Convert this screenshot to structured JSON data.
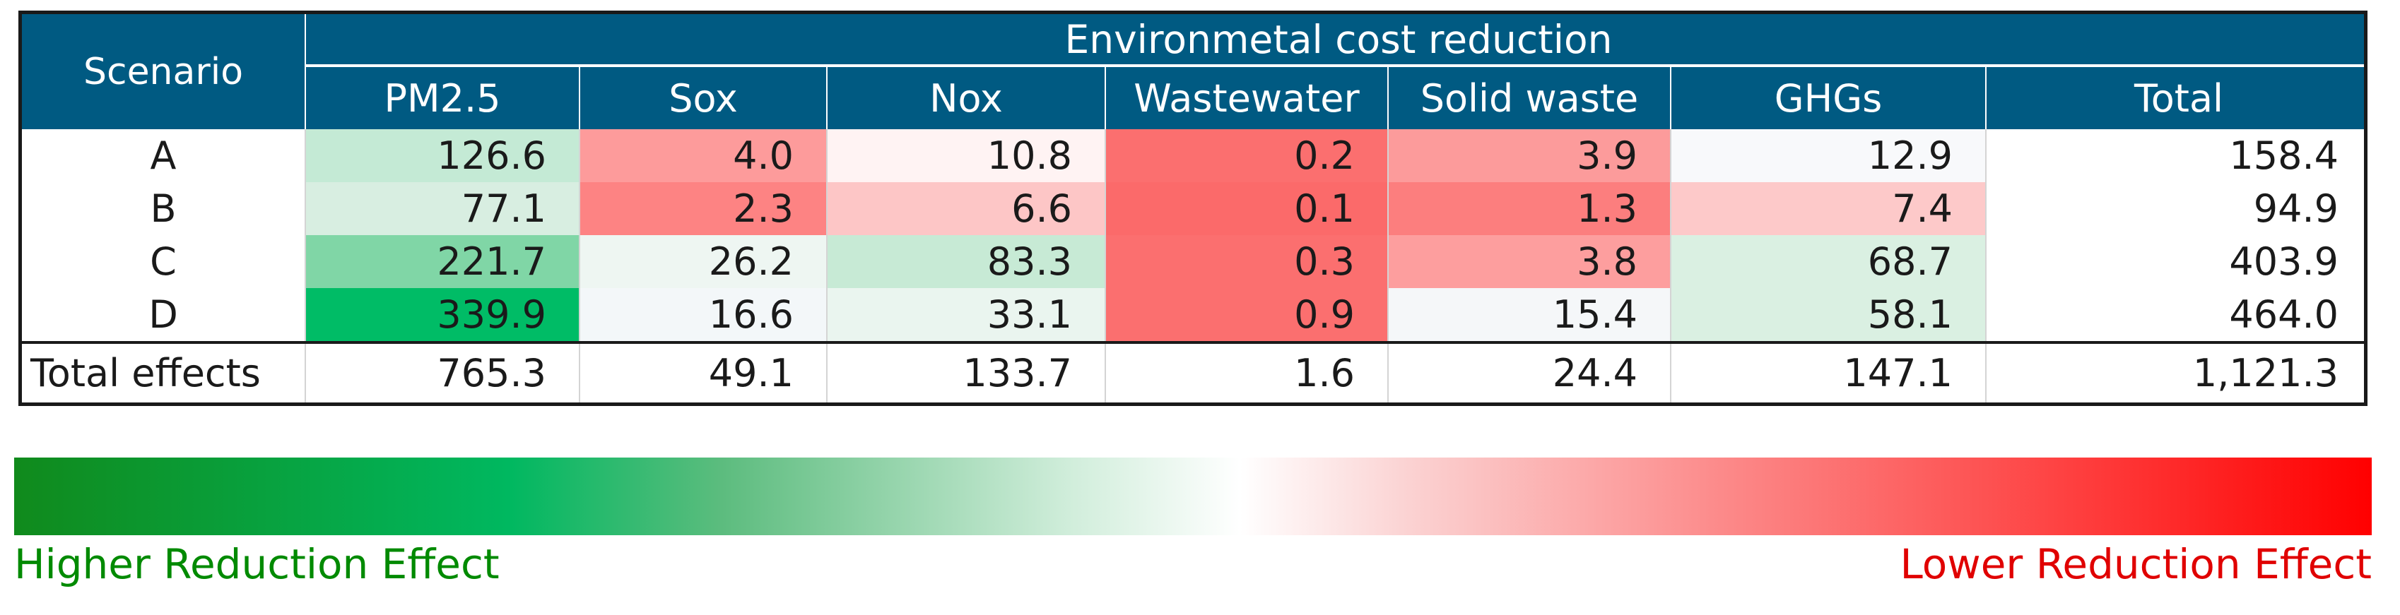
{
  "title": "Environmetal cost reduction",
  "scenario_header": "Scenario",
  "columns": [
    "PM2.5",
    "Sox",
    "Nox",
    "Wastewater",
    "Solid waste",
    "GHGs",
    "Total"
  ],
  "rows": [
    {
      "label": "A",
      "values": [
        "126.6",
        "4.0",
        "10.8",
        "0.2",
        "3.9",
        "12.9",
        "158.4"
      ]
    },
    {
      "label": "B",
      "values": [
        "77.1",
        "2.3",
        "6.6",
        "0.1",
        "1.3",
        "7.4",
        "94.9"
      ]
    },
    {
      "label": "C",
      "values": [
        "221.7",
        "26.2",
        "83.3",
        "0.3",
        "3.8",
        "68.7",
        "403.9"
      ]
    },
    {
      "label": "D",
      "values": [
        "339.9",
        "16.6",
        "33.1",
        "0.9",
        "15.4",
        "58.1",
        "464.0"
      ]
    }
  ],
  "totals": {
    "label": "Total effects",
    "values": [
      "765.3",
      "49.1",
      "133.7",
      "1.6",
      "24.4",
      "147.1",
      "1,121.3"
    ]
  },
  "cell_colors": [
    [
      "#c4ead5",
      "#fd9b9b",
      "#fff3f3",
      "#fb6f6f",
      "#fc9b9b",
      "#f8f9fb",
      "#ffffff"
    ],
    [
      "#d8eee1",
      "#fd8383",
      "#fdc6c6",
      "#fb6a6a",
      "#fc7e7e",
      "#fdc9c9",
      "#ffffff"
    ],
    [
      "#80d6a6",
      "#eef6f2",
      "#c7ead5",
      "#fb6f6f",
      "#fd9e9e",
      "#daf0e2",
      "#ffffff"
    ],
    [
      "#00bc66",
      "#f3f7f9",
      "#eaf5ef",
      "#fb6f6f",
      "#f5f7f9",
      "#daf0e2",
      "#ffffff"
    ]
  ],
  "legend": {
    "high": "Higher Reduction Effect",
    "low": "Lower Reduction Effect"
  },
  "header_color": "#005a82",
  "chart_data": {
    "type": "table",
    "title": "Environmetal cost reduction",
    "categories": [
      "A",
      "B",
      "C",
      "D"
    ],
    "series": [
      {
        "name": "PM2.5",
        "values": [
          126.6,
          77.1,
          221.7,
          339.9
        ]
      },
      {
        "name": "Sox",
        "values": [
          4.0,
          2.3,
          26.2,
          16.6
        ]
      },
      {
        "name": "Nox",
        "values": [
          10.8,
          6.6,
          83.3,
          33.1
        ]
      },
      {
        "name": "Wastewater",
        "values": [
          0.2,
          0.1,
          0.3,
          0.9
        ]
      },
      {
        "name": "Solid waste",
        "values": [
          3.9,
          1.3,
          3.8,
          15.4
        ]
      },
      {
        "name": "GHGs",
        "values": [
          12.9,
          7.4,
          68.7,
          58.1
        ]
      },
      {
        "name": "Total",
        "values": [
          158.4,
          94.9,
          403.9,
          464.0
        ]
      }
    ],
    "totals": [
      765.3,
      49.1,
      133.7,
      1.6,
      24.4,
      147.1,
      1121.3
    ]
  }
}
